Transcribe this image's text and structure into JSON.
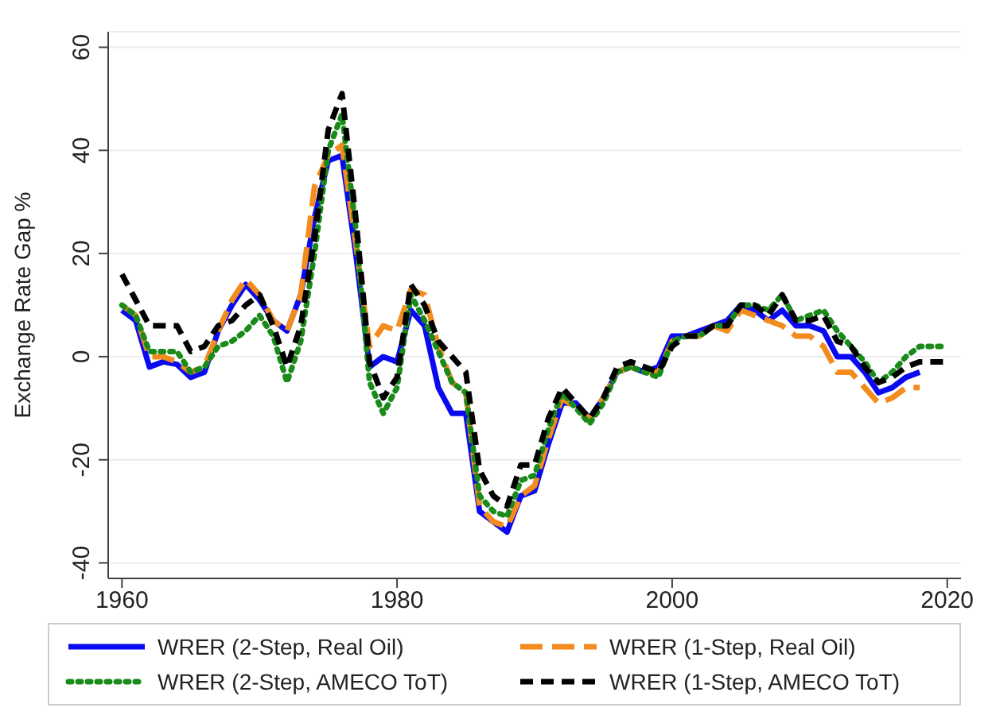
{
  "chart_data": {
    "type": "line",
    "ylabel": "Exchange Rate Gap %",
    "xlim": [
      1959,
      2021
    ],
    "xticks": [
      1960,
      1980,
      2000,
      2020
    ],
    "ylim": [
      -43,
      63
    ],
    "yticks": [
      -40,
      -20,
      0,
      20,
      40,
      60
    ],
    "grid": "y",
    "legend": "bottom",
    "marker": "none",
    "x": [
      1960,
      1961,
      1962,
      1963,
      1964,
      1965,
      1966,
      1967,
      1968,
      1969,
      1970,
      1971,
      1972,
      1973,
      1974,
      1975,
      1976,
      1977,
      1978,
      1979,
      1980,
      1981,
      1982,
      1983,
      1984,
      1985,
      1986,
      1987,
      1988,
      1989,
      1990,
      1991,
      1992,
      1993,
      1994,
      1995,
      1996,
      1997,
      1998,
      1999,
      2000,
      2001,
      2002,
      2003,
      2004,
      2005,
      2006,
      2007,
      2008,
      2009,
      2010,
      2011,
      2012,
      2013,
      2014,
      2015,
      2016,
      2017,
      2018,
      2019,
      2020
    ],
    "series": [
      {
        "name": "WRER (2-Step, Real Oil)",
        "color": "#0a0af0",
        "line_style": "solid",
        "values": [
          9,
          7,
          -2,
          -1,
          -1.5,
          -4,
          -3,
          5,
          10,
          14,
          11,
          7,
          5,
          12,
          27,
          38,
          39,
          20,
          -2,
          0,
          -1,
          9,
          6,
          -6,
          -11,
          -11,
          -30,
          -32,
          -34,
          -27,
          -26,
          -17,
          -9,
          -9,
          -12,
          -8,
          -3,
          -2,
          -3,
          -2,
          4,
          4,
          5,
          6,
          7,
          10,
          9,
          7,
          9,
          6,
          6,
          5,
          0,
          0,
          -3,
          -7,
          -6,
          -4,
          -3,
          null,
          null
        ]
      },
      {
        "name": "WRER (1-Step, Real Oil)",
        "color": "#f28c1e",
        "line_style": "dashed",
        "values": [
          10,
          8,
          0,
          0,
          -1,
          -3,
          -2,
          5,
          11,
          15,
          12,
          7,
          5,
          12,
          33,
          39,
          41,
          22,
          2,
          6,
          5,
          13,
          12,
          2,
          -5,
          -7,
          -29,
          -32,
          -33,
          -27,
          -25,
          -16,
          -8,
          -10,
          -12,
          -8,
          -3,
          -2,
          -3,
          -3,
          3,
          4,
          4,
          6,
          5,
          9,
          8,
          7,
          6,
          4,
          4,
          2,
          -3,
          -3,
          -6,
          -9,
          -8,
          -6,
          -6,
          null,
          null
        ]
      },
      {
        "name": "WRER (2-Step, AMECO ToT)",
        "color": "#1a8a1a",
        "line_style": "dotted",
        "values": [
          10,
          8,
          1,
          1,
          1,
          -3,
          -2,
          2,
          3,
          5,
          8,
          4,
          -5,
          3,
          20,
          40,
          47,
          25,
          -5,
          -11,
          -6,
          12,
          7,
          1,
          -5,
          -7,
          -27,
          -30,
          -31,
          -24,
          -23,
          -14,
          -7,
          -10,
          -13,
          -9,
          -3,
          -2,
          -3,
          -4,
          3,
          4,
          4,
          6,
          6,
          10,
          10,
          9,
          12,
          7,
          8,
          9,
          5,
          2,
          -1,
          -5,
          -3,
          0,
          2,
          2,
          2
        ]
      },
      {
        "name": "WRER (1-Step, AMECO ToT)",
        "color": "#000000",
        "line_style": "shortdash",
        "values": [
          16,
          11,
          6,
          6,
          6,
          1,
          2,
          6,
          7,
          10,
          12,
          6,
          -2,
          6,
          23,
          44,
          51,
          27,
          -1,
          -8,
          -4,
          14,
          10,
          3,
          0,
          -3,
          -22,
          -27,
          -29,
          -21,
          -21,
          -12,
          -6,
          -9,
          -12,
          -8,
          -2,
          -1,
          -2,
          -3,
          2,
          4,
          4,
          6,
          6,
          10,
          10,
          8,
          12,
          7,
          7,
          8,
          3,
          2,
          -2,
          -5,
          -4,
          -2,
          -1,
          -1,
          -1
        ]
      }
    ]
  }
}
